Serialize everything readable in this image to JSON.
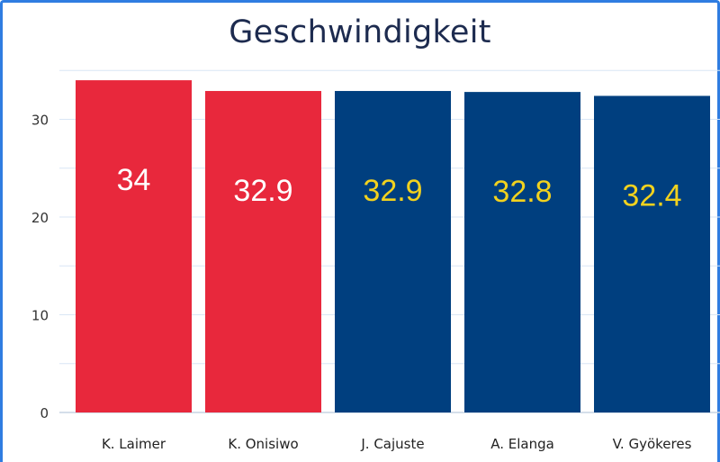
{
  "chart_data": {
    "type": "bar",
    "title": "Geschwindigkeit",
    "xlabel": "",
    "ylabel": "",
    "ylim": [
      0,
      35
    ],
    "yticks": [
      0,
      10,
      20,
      30
    ],
    "grid": true,
    "categories": [
      "K. Laimer",
      "K. Onisiwo",
      "J. Cajuste",
      "A. Elanga",
      "V. Gyökeres"
    ],
    "values": [
      34,
      32.9,
      32.9,
      32.8,
      32.4
    ],
    "value_labels": [
      "34",
      "32.9",
      "32.9",
      "32.8",
      "32.4"
    ],
    "bar_colors": [
      "#e8283c",
      "#e8283c",
      "#003f7f",
      "#003f7f",
      "#003f7f"
    ],
    "label_colors": [
      "#ffffff",
      "#ffffff",
      "#f2d21e",
      "#f2d21e",
      "#f2d21e"
    ]
  },
  "colors": {
    "frame": "#2f7de1",
    "grid": "#d9e6f5",
    "axis": "#c7d3e3"
  }
}
